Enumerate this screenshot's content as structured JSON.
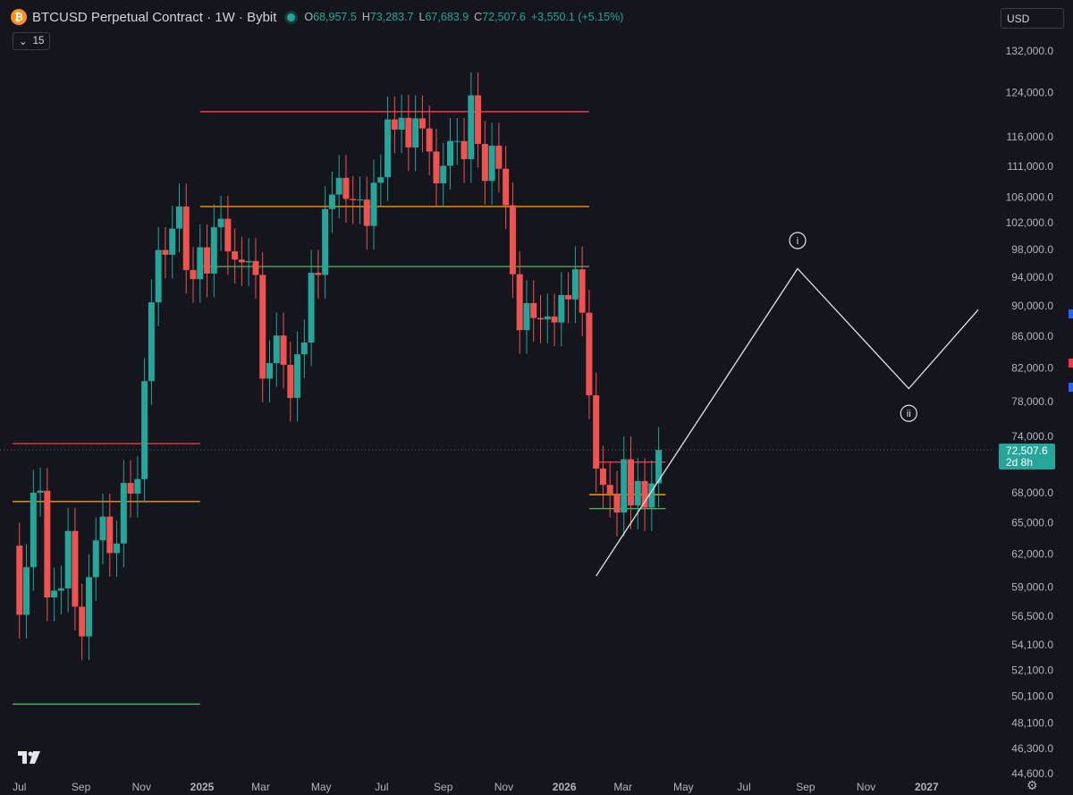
{
  "header": {
    "title": "BTCUSD Perpetual Contract · 1W · Bybit",
    "ohlc": {
      "o_label": "O",
      "o": "68,957.5",
      "h_label": "H",
      "h": "73,283.7",
      "l_label": "L",
      "l": "67,683.9",
      "c_label": "C",
      "c": "72,507.6",
      "change": "+3,550.1 (+5.15%)"
    },
    "indicator_count": "15",
    "currency": "USD"
  },
  "price_tag": {
    "price": "72,507.6",
    "countdown": "2d 8h"
  },
  "colors": {
    "bull": "#26a69a",
    "bear": "#ef5350",
    "red_line": "#f23645",
    "orange_line": "#ff9800",
    "green_line": "#4caf50",
    "wave": "#e6e6e6"
  },
  "chart_data": {
    "type": "candlestick",
    "scale": "log",
    "ylim": [
      44600,
      132000
    ],
    "y_ticks": [
      "132,000.0",
      "124,000.0",
      "116,000.0",
      "111,000.0",
      "106,000.0",
      "102,000.0",
      "98,000.0",
      "94,000.0",
      "90,000.0",
      "86,000.0",
      "82,000.0",
      "78,000.0",
      "74,000.0",
      "68,000.0",
      "65,000.0",
      "62,000.0",
      "59,000.0",
      "56,500.0",
      "54,100.0",
      "52,100.0",
      "50,100.0",
      "48,100.0",
      "46,300.0",
      "44,600.0"
    ],
    "x_ticks": [
      {
        "label": "Jul",
        "date": "2024-07-01"
      },
      {
        "label": "Sep",
        "date": "2024-09-01"
      },
      {
        "label": "Nov",
        "date": "2024-11-01"
      },
      {
        "label": "2025",
        "date": "2025-01-01",
        "bold": true
      },
      {
        "label": "Mar",
        "date": "2025-03-01"
      },
      {
        "label": "May",
        "date": "2025-05-01"
      },
      {
        "label": "Jul",
        "date": "2025-07-01"
      },
      {
        "label": "Sep",
        "date": "2025-09-01"
      },
      {
        "label": "Nov",
        "date": "2025-11-01"
      },
      {
        "label": "2026",
        "date": "2026-01-01",
        "bold": true
      },
      {
        "label": "Mar",
        "date": "2026-03-01"
      },
      {
        "label": "May",
        "date": "2026-05-01"
      },
      {
        "label": "Jul",
        "date": "2026-07-01"
      },
      {
        "label": "Sep",
        "date": "2026-09-01"
      },
      {
        "label": "Nov",
        "date": "2026-11-01"
      },
      {
        "label": "2027",
        "date": "2027-01-01",
        "bold": true
      }
    ],
    "close_series": [
      {
        "date": "2024-06-24",
        "close": 62800
      },
      {
        "date": "2024-07-01",
        "close": 56600
      },
      {
        "date": "2024-07-08",
        "close": 60800
      },
      {
        "date": "2024-07-15",
        "close": 68000
      },
      {
        "date": "2024-07-22",
        "close": 68200
      },
      {
        "date": "2024-07-29",
        "close": 58100
      },
      {
        "date": "2024-08-05",
        "close": 58700
      },
      {
        "date": "2024-08-12",
        "close": 58900
      },
      {
        "date": "2024-08-19",
        "close": 64200
      },
      {
        "date": "2024-08-26",
        "close": 57300
      },
      {
        "date": "2024-09-02",
        "close": 54800
      },
      {
        "date": "2024-09-09",
        "close": 59900
      },
      {
        "date": "2024-09-16",
        "close": 63300
      },
      {
        "date": "2024-09-23",
        "close": 65600
      },
      {
        "date": "2024-09-30",
        "close": 62100
      },
      {
        "date": "2024-10-07",
        "close": 63000
      },
      {
        "date": "2024-10-14",
        "close": 69000
      },
      {
        "date": "2024-10-21",
        "close": 67900
      },
      {
        "date": "2024-10-28",
        "close": 69400
      },
      {
        "date": "2024-11-04",
        "close": 80400
      },
      {
        "date": "2024-11-11",
        "close": 90500
      },
      {
        "date": "2024-11-18",
        "close": 97900
      },
      {
        "date": "2024-11-25",
        "close": 97200
      },
      {
        "date": "2024-12-02",
        "close": 101100
      },
      {
        "date": "2024-12-09",
        "close": 104500
      },
      {
        "date": "2024-12-16",
        "close": 95000
      },
      {
        "date": "2024-12-23",
        "close": 93700
      },
      {
        "date": "2024-12-30",
        "close": 98300
      },
      {
        "date": "2025-01-06",
        "close": 94500
      },
      {
        "date": "2025-01-13",
        "close": 101300
      },
      {
        "date": "2025-01-20",
        "close": 102600
      },
      {
        "date": "2025-01-27",
        "close": 97700
      },
      {
        "date": "2025-02-03",
        "close": 96500
      },
      {
        "date": "2025-02-10",
        "close": 96100
      },
      {
        "date": "2025-02-17",
        "close": 96300
      },
      {
        "date": "2025-02-24",
        "close": 94300
      },
      {
        "date": "2025-03-03",
        "close": 80700
      },
      {
        "date": "2025-03-10",
        "close": 82600
      },
      {
        "date": "2025-03-17",
        "close": 86100
      },
      {
        "date": "2025-03-24",
        "close": 82400
      },
      {
        "date": "2025-03-31",
        "close": 78400
      },
      {
        "date": "2025-04-07",
        "close": 83700
      },
      {
        "date": "2025-04-14",
        "close": 85200
      },
      {
        "date": "2025-04-21",
        "close": 94600
      },
      {
        "date": "2025-04-28",
        "close": 94300
      },
      {
        "date": "2025-05-05",
        "close": 104100
      },
      {
        "date": "2025-05-12",
        "close": 106400
      },
      {
        "date": "2025-05-19",
        "close": 109100
      },
      {
        "date": "2025-05-26",
        "close": 105700
      },
      {
        "date": "2025-06-02",
        "close": 105500
      },
      {
        "date": "2025-06-09",
        "close": 105600
      },
      {
        "date": "2025-06-16",
        "close": 101500
      },
      {
        "date": "2025-06-23",
        "close": 108300
      },
      {
        "date": "2025-06-30",
        "close": 109200
      },
      {
        "date": "2025-07-07",
        "close": 119100
      },
      {
        "date": "2025-07-14",
        "close": 117300
      },
      {
        "date": "2025-07-21",
        "close": 119400
      },
      {
        "date": "2025-07-28",
        "close": 114200
      },
      {
        "date": "2025-08-04",
        "close": 119300
      },
      {
        "date": "2025-08-11",
        "close": 117500
      },
      {
        "date": "2025-08-18",
        "close": 113500
      },
      {
        "date": "2025-08-25",
        "close": 108200
      },
      {
        "date": "2025-09-01",
        "close": 111100
      },
      {
        "date": "2025-09-08",
        "close": 115300
      },
      {
        "date": "2025-09-15",
        "close": 115300
      },
      {
        "date": "2025-09-22",
        "close": 112200
      },
      {
        "date": "2025-09-29",
        "close": 123500
      },
      {
        "date": "2025-10-06",
        "close": 114800
      },
      {
        "date": "2025-10-13",
        "close": 108600
      },
      {
        "date": "2025-10-20",
        "close": 114500
      },
      {
        "date": "2025-10-27",
        "close": 110600
      },
      {
        "date": "2025-11-03",
        "close": 104700
      },
      {
        "date": "2025-11-10",
        "close": 94400
      },
      {
        "date": "2025-11-17",
        "close": 86800
      },
      {
        "date": "2025-11-24",
        "close": 90400
      },
      {
        "date": "2025-12-01",
        "close": 88400
      },
      {
        "date": "2025-12-08",
        "close": 88200
      },
      {
        "date": "2025-12-15",
        "close": 88600
      },
      {
        "date": "2025-12-22",
        "close": 87800
      },
      {
        "date": "2025-12-29",
        "close": 91500
      },
      {
        "date": "2026-01-05",
        "close": 90900
      },
      {
        "date": "2026-01-12",
        "close": 95100
      },
      {
        "date": "2026-01-19",
        "close": 89100
      },
      {
        "date": "2026-01-26",
        "close": 78700
      },
      {
        "date": "2026-02-02",
        "close": 70500
      },
      {
        "date": "2026-02-09",
        "close": 68800
      },
      {
        "date": "2026-02-16",
        "close": 67900
      },
      {
        "date": "2026-02-23",
        "close": 66000
      },
      {
        "date": "2026-03-02",
        "close": 71500
      },
      {
        "date": "2026-03-09",
        "close": 66700
      },
      {
        "date": "2026-03-16",
        "close": 69200
      },
      {
        "date": "2026-03-23",
        "close": 66500
      },
      {
        "date": "2026-03-30",
        "close": 68957.5
      },
      {
        "date": "2026-04-06",
        "close": 72507.6
      }
    ],
    "horizontal_levels": [
      {
        "price": 120500,
        "from": "2024-12-30",
        "to": "2026-01-26",
        "color": "red"
      },
      {
        "price": 104500,
        "from": "2024-12-30",
        "to": "2026-01-26",
        "color": "orange"
      },
      {
        "price": 95500,
        "from": "2024-12-30",
        "to": "2026-01-26",
        "color": "green"
      },
      {
        "price": 73200,
        "from": "2024-06-24",
        "to": "2024-12-30",
        "color": "red"
      },
      {
        "price": 67100,
        "from": "2024-06-24",
        "to": "2024-12-30",
        "color": "orange"
      },
      {
        "price": 49500,
        "from": "2024-06-24",
        "to": "2024-12-30",
        "color": "green"
      },
      {
        "price": 71200,
        "from": "2026-02-02",
        "to": "2026-04-13",
        "color": "red"
      },
      {
        "price": 67800,
        "from": "2026-01-26",
        "to": "2026-04-13",
        "color": "orange"
      },
      {
        "price": 66400,
        "from": "2026-01-26",
        "to": "2026-04-13",
        "color": "green"
      }
    ],
    "projection": {
      "points": [
        {
          "date": "2026-02-02",
          "price": 60000
        },
        {
          "date": "2026-08-24",
          "price": 95200
        },
        {
          "date": "2026-12-14",
          "price": 79500
        },
        {
          "date": "2027-02-22",
          "price": 89500
        }
      ],
      "labels": [
        {
          "text": "i",
          "date": "2026-08-24",
          "price": 99300
        },
        {
          "text": "ii",
          "date": "2026-12-14",
          "price": 76600
        }
      ]
    }
  }
}
